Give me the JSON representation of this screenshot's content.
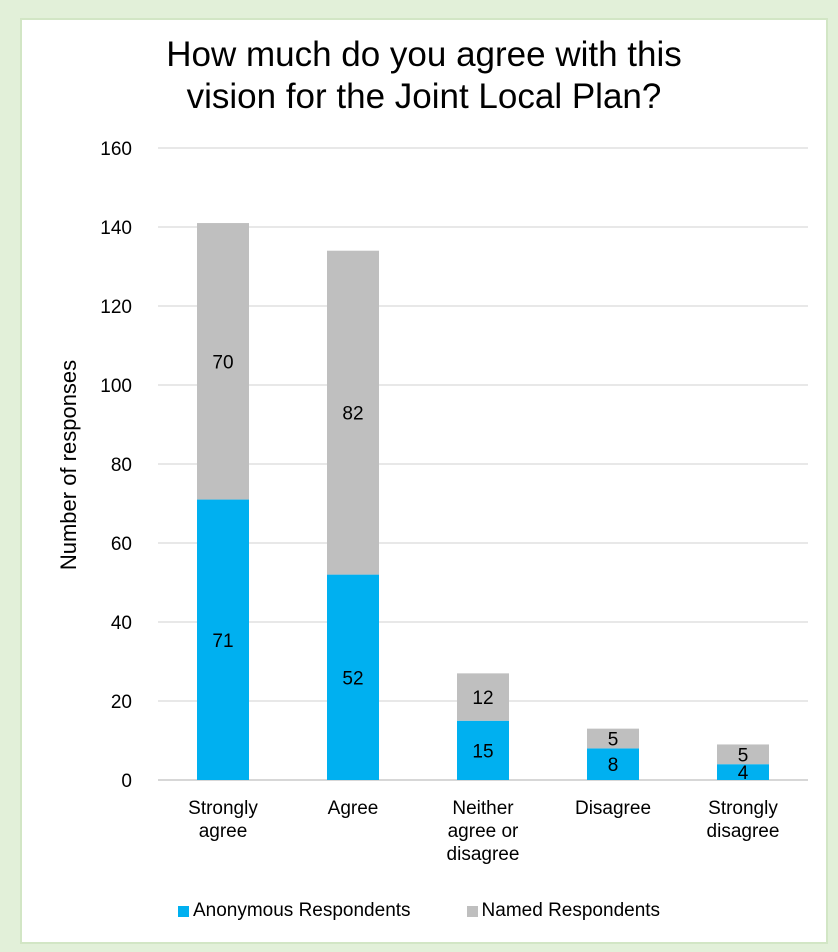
{
  "chart_data": {
    "type": "bar",
    "stacked": true,
    "title": [
      "How much do you agree with this",
      "vision for the Joint Local Plan?"
    ],
    "ylabel": "Number of responses",
    "ylim": [
      0,
      160
    ],
    "yticks": [
      0,
      20,
      40,
      60,
      80,
      100,
      120,
      140,
      160
    ],
    "grid": true,
    "legend_position": "bottom",
    "categories": [
      [
        "Strongly",
        "agree"
      ],
      [
        "Agree"
      ],
      [
        "Neither",
        "agree or",
        "disagree"
      ],
      [
        "Disagree"
      ],
      [
        "Strongly",
        "disagree"
      ]
    ],
    "series": [
      {
        "name": "Anonymous Respondents",
        "color": "#00b0f0",
        "values": [
          71,
          52,
          15,
          8,
          4
        ]
      },
      {
        "name": "Named Respondents",
        "color": "#bfbfbf",
        "values": [
          70,
          82,
          12,
          5,
          5
        ]
      }
    ]
  }
}
